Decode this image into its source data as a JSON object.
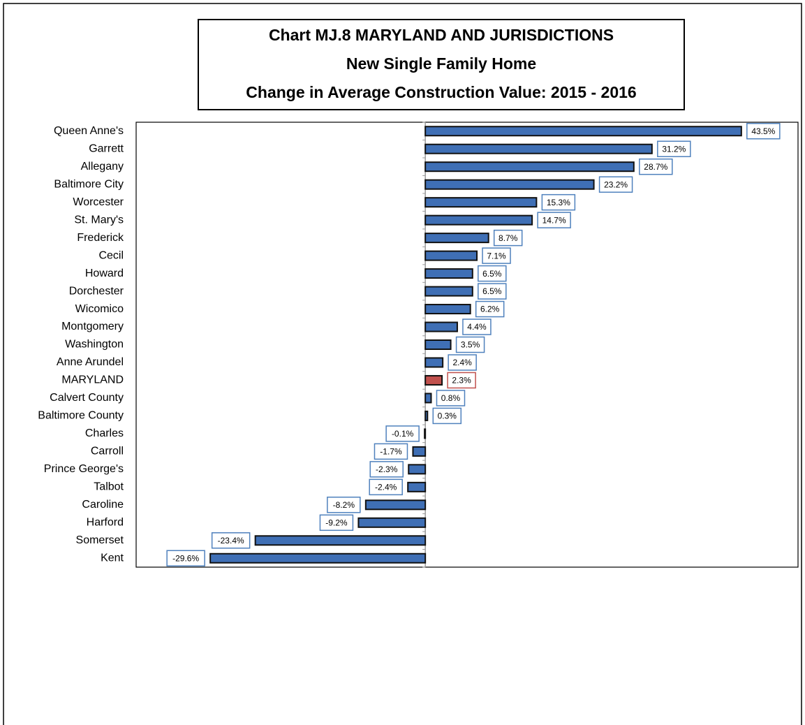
{
  "chart_data": {
    "type": "hbar",
    "title": [
      "Chart MJ.8 MARYLAND AND JURISDICTIONS",
      "New Single Family Home",
      "Change in Average Construction Value:  2015 - 2016"
    ],
    "categories": [
      "Queen Anne's",
      "Garrett ",
      "Allegany",
      "Baltimore City",
      "Worcester",
      "St. Mary's",
      "Frederick",
      "Cecil",
      "Howard ",
      "Dorchester",
      "Wicomico",
      "Montgomery",
      "Washington",
      "Anne Arundel",
      "MARYLAND ",
      "Calvert County",
      "Baltimore County",
      "Charles",
      "Carroll ",
      "Prince George's",
      "Talbot",
      "Caroline",
      "Harford",
      "Somerset",
      "Kent"
    ],
    "values": [
      43.5,
      31.2,
      28.7,
      23.2,
      15.3,
      14.7,
      8.7,
      7.1,
      6.5,
      6.5,
      6.2,
      4.4,
      3.5,
      2.4,
      2.3,
      0.8,
      0.3,
      -0.1,
      -1.7,
      -2.3,
      -2.4,
      -8.2,
      -9.2,
      -23.4,
      -29.6
    ],
    "value_labels": [
      "43.5%",
      "31.2%",
      "28.7%",
      "23.2%",
      "15.3%",
      "14.7%",
      "8.7%",
      "7.1%",
      "6.5%",
      "6.5%",
      "6.2%",
      "4.4%",
      "3.5%",
      "2.4%",
      "2.3%",
      "0.8%",
      "0.3%",
      "-0.1%",
      "-1.7%",
      "-2.3%",
      "-2.4%",
      "-8.2%",
      "-9.2%",
      "-23.4%",
      "-29.6%"
    ],
    "colors": [
      "#3f6fb5",
      "#3f6fb5",
      "#3f6fb5",
      "#3f6fb5",
      "#3f6fb5",
      "#3f6fb5",
      "#3f6fb5",
      "#3f6fb5",
      "#3f6fb5",
      "#3f6fb5",
      "#3f6fb5",
      "#3f6fb5",
      "#3f6fb5",
      "#3f6fb5",
      "#c0504d",
      "#3f6fb5",
      "#3f6fb5",
      "#3f6fb5",
      "#3f6fb5",
      "#3f6fb5",
      "#3f6fb5",
      "#3f6fb5",
      "#3f6fb5",
      "#3f6fb5",
      "#3f6fb5"
    ],
    "xlim": [
      -39.8,
      51.3
    ]
  }
}
